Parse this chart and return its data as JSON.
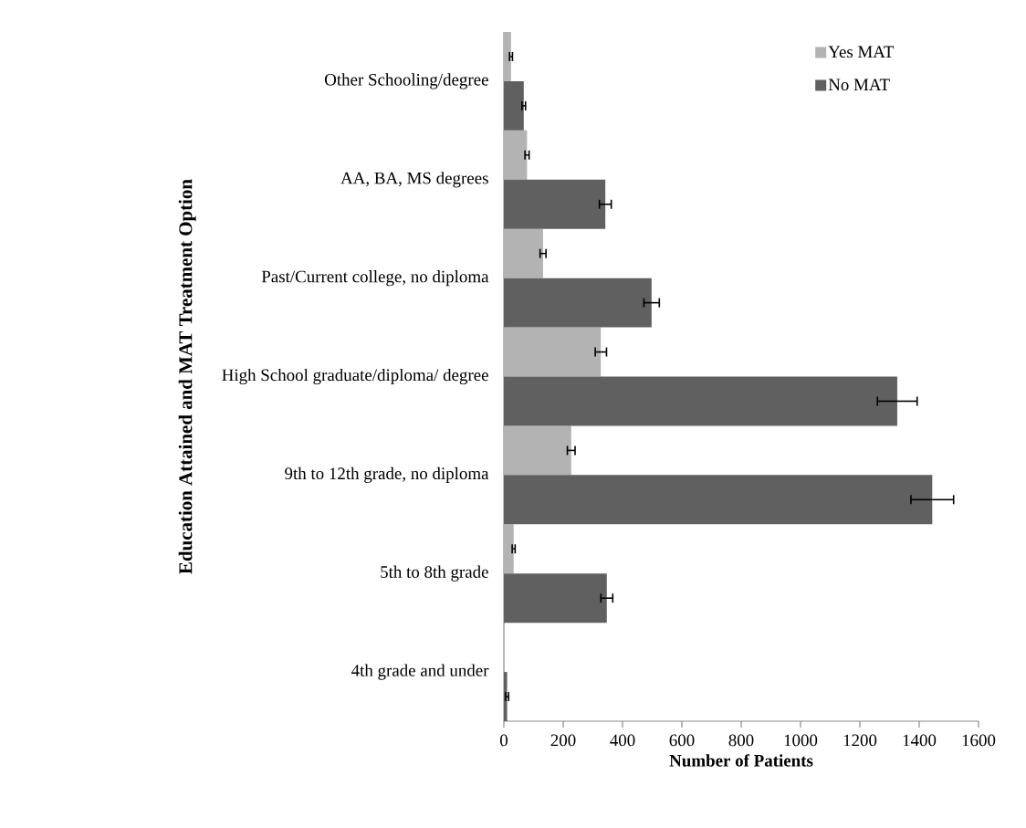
{
  "chart_data": {
    "type": "bar",
    "orientation": "horizontal",
    "xlabel": "Number of Patients",
    "ylabel": "Education Attained and MAT Treatment Option",
    "categories": [
      "Other Schooling/degree",
      "AA, BA, MS degrees",
      "Past/Current college, no diploma",
      "High School graduate/diploma/ degree",
      "9th to 12th grade, no diploma",
      "5th to 8th grade",
      "4th grade and under"
    ],
    "series": [
      {
        "name": "Yes MAT",
        "color": "#b3b3b3",
        "values": [
          24,
          78,
          132,
          327,
          227,
          33,
          2
        ],
        "errors": [
          5,
          7,
          10,
          19,
          13,
          5,
          null
        ]
      },
      {
        "name": "No MAT",
        "color": "#606060",
        "values": [
          67,
          342,
          498,
          1326,
          1444,
          347,
          11
        ],
        "errors": [
          6,
          20,
          26,
          67,
          72,
          20,
          5
        ]
      }
    ],
    "xlim": [
      0,
      1600
    ],
    "xticks": [
      0,
      200,
      400,
      600,
      800,
      1000,
      1200,
      1400,
      1600
    ],
    "legend": "top right"
  }
}
